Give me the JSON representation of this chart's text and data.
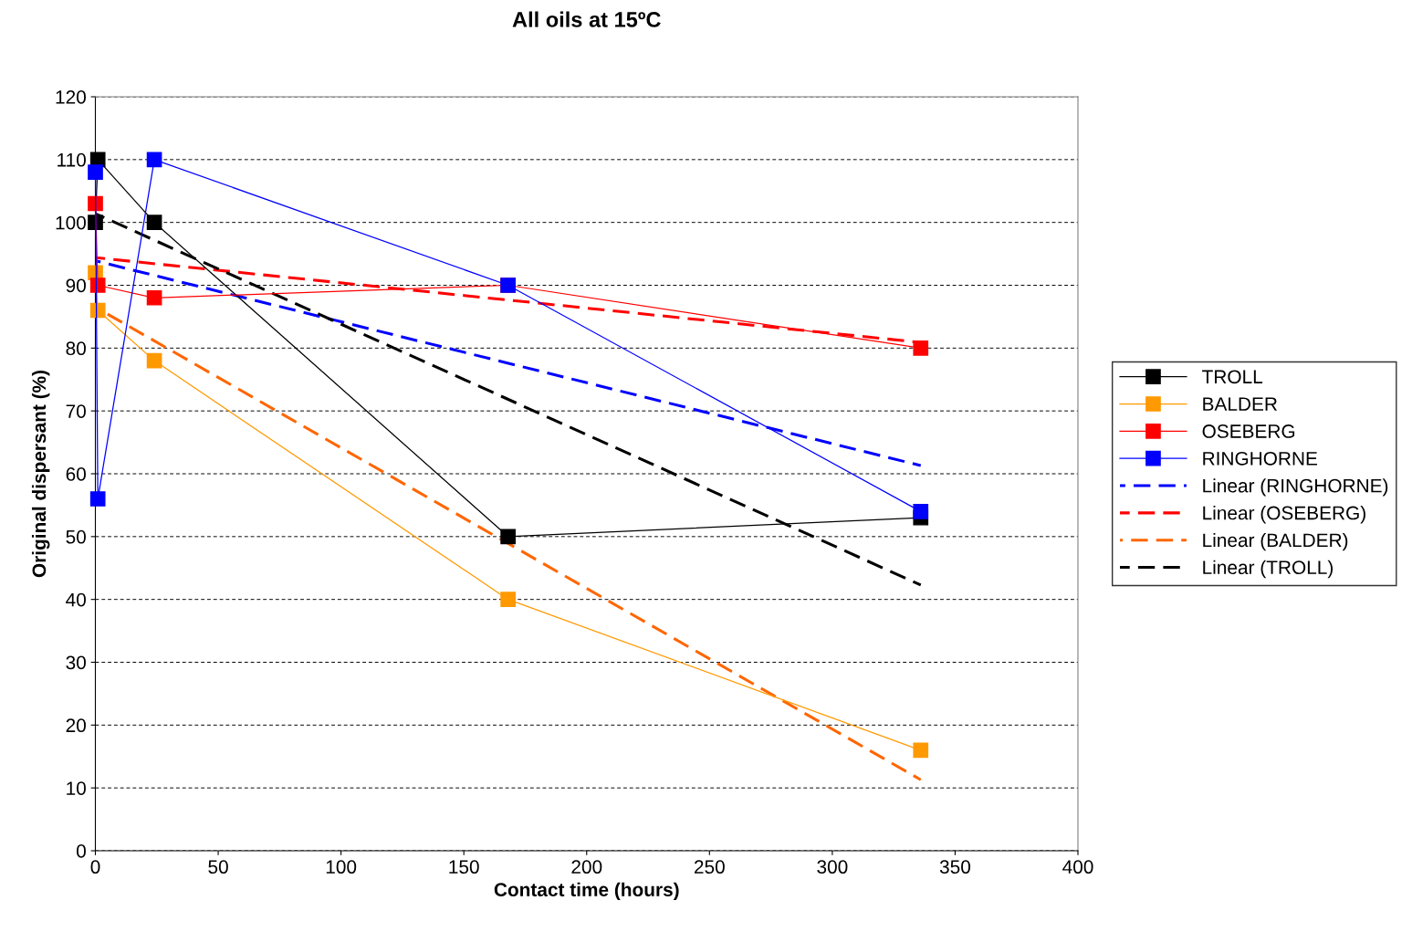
{
  "chart_data": {
    "type": "line",
    "title": "All oils at 15ºC",
    "xlabel": "Contact time (hours)",
    "ylabel": "Original dispersant (%)",
    "xlim": [
      0,
      400
    ],
    "xticks": [
      0,
      50,
      100,
      150,
      200,
      250,
      300,
      350,
      400
    ],
    "ylim": [
      0,
      120
    ],
    "yticks": [
      0,
      10,
      20,
      30,
      40,
      50,
      60,
      70,
      80,
      90,
      100,
      110,
      120
    ],
    "grid": "y",
    "legend": "right",
    "x": [
      0,
      1,
      24,
      168,
      336
    ],
    "series": [
      {
        "name": "TROLL",
        "color": "#000000",
        "values": [
          100,
          110,
          100,
          50,
          53
        ],
        "marker": "square",
        "line_style": "solid"
      },
      {
        "name": "BALDER",
        "color": "#ff9900",
        "values": [
          92,
          86,
          78,
          40,
          16
        ],
        "marker": "square",
        "line_style": "solid"
      },
      {
        "name": "OSEBERG",
        "color": "#ff0000",
        "values": [
          103,
          90,
          88,
          90,
          80
        ],
        "marker": "square",
        "line_style": "solid"
      },
      {
        "name": "RINGHORNE",
        "color": "#0000ff",
        "values": [
          108,
          56,
          110,
          90,
          54
        ],
        "marker": "square",
        "line_style": "solid"
      },
      {
        "name": "Linear (RINGHORNE)",
        "color": "#0000ff",
        "x": [
          0,
          336
        ],
        "values": [
          93.9,
          61.3
        ],
        "marker": "none",
        "line_style": "dashed"
      },
      {
        "name": "Linear (OSEBERG)",
        "color": "#ff0000",
        "x": [
          0,
          336
        ],
        "values": [
          94.4,
          80.9
        ],
        "marker": "none",
        "line_style": "dashed"
      },
      {
        "name": "Linear (BALDER)",
        "color": "#ff6600",
        "x": [
          1,
          336
        ],
        "values": [
          86.3,
          11.3
        ],
        "marker": "none",
        "line_style": "dashed"
      },
      {
        "name": "Linear (TROLL)",
        "color": "#000000",
        "x": [
          0,
          336
        ],
        "values": [
          101.4,
          42.3
        ],
        "marker": "none",
        "line_style": "dashed"
      }
    ]
  }
}
